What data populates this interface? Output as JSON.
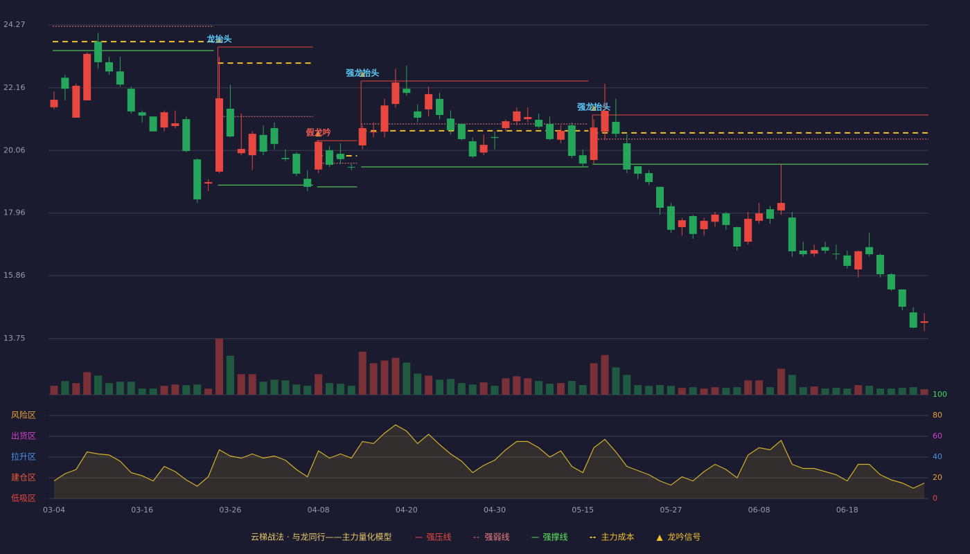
{
  "chart_data": {
    "type": "candlestick",
    "categories": [
      "03-04",
      null,
      null,
      null,
      null,
      null,
      null,
      null,
      "03-16",
      null,
      null,
      null,
      null,
      null,
      null,
      null,
      "03-26",
      null,
      null,
      null,
      null,
      null,
      null,
      null,
      "04-08",
      null,
      null,
      null,
      null,
      null,
      null,
      null,
      "04-20",
      null,
      null,
      null,
      null,
      null,
      null,
      null,
      "04-30",
      null,
      null,
      null,
      null,
      null,
      null,
      null,
      "05-15",
      null,
      null,
      null,
      null,
      null,
      null,
      null,
      "05-27",
      null,
      null,
      null,
      null,
      null,
      null,
      null,
      "06-08",
      null,
      null,
      null,
      null,
      null,
      null,
      null,
      "06-18",
      null,
      null,
      null,
      null,
      null,
      null,
      null
    ],
    "open": [
      21.51,
      22.5,
      21.16,
      21.74,
      23.71,
      23.02,
      22.71,
      22.13,
      21.34,
      21.2,
      20.83,
      20.88,
      21.11,
      19.76,
      18.95,
      19.35,
      21.46,
      19.97,
      19.9,
      20.58,
      20.81,
      19.81,
      19.95,
      19.11,
      19.42,
      20.07,
      19.95,
      19.51,
      20.23,
      20.67,
      20.69,
      21.62,
      22.13,
      21.37,
      21.44,
      21.79,
      21.13,
      20.95,
      20.37,
      19.99,
      20.51,
      20.81,
      21.04,
      21.11,
      21.09,
      20.95,
      20.42,
      20.9,
      19.9,
      19.74,
      20.69,
      21.02,
      20.3,
      19.53,
      19.3,
      18.84,
      18.19,
      17.49,
      17.86,
      17.42,
      17.67,
      17.95,
      17.49,
      17,
      17.7,
      18.09,
      18.05,
      17.81,
      16.7,
      16.6,
      16.82,
      16.6,
      16.54,
      16.07,
      16.82,
      16.56,
      15.91,
      15.4,
      14.63,
      14.28
    ],
    "high": [
      22.04,
      22.6,
      22.3,
      23.35,
      24,
      23.2,
      23.2,
      22.2,
      21.4,
      21.2,
      21.4,
      21.4,
      21.2,
      19.8,
      19.1,
      23.2,
      22.27,
      21.3,
      20.7,
      20.9,
      21,
      20.1,
      20,
      19.4,
      20.4,
      20.2,
      20.3,
      19.6,
      20.9,
      21,
      21.8,
      22.8,
      22.9,
      21.6,
      22.2,
      22,
      21.4,
      20.95,
      20.5,
      20.6,
      20.7,
      21.1,
      21.5,
      21.5,
      21.3,
      21.2,
      20.9,
      21,
      20.1,
      21.1,
      22.3,
      21.8,
      20.6,
      19.53,
      19.4,
      18.84,
      18.3,
      17.8,
      17.9,
      17.8,
      18,
      18,
      17.5,
      18,
      18.3,
      18.2,
      19.6,
      18,
      17,
      16.9,
      17,
      16.9,
      16.7,
      16.7,
      17.3,
      16.6,
      15.95,
      15.4,
      14.8,
      14.6
    ],
    "low": [
      21.44,
      21.74,
      21.16,
      21.74,
      22.8,
      22.6,
      22.2,
      21.3,
      21,
      20.7,
      20.7,
      20.8,
      20,
      18.3,
      18.7,
      19.3,
      20.5,
      19.9,
      19.4,
      19.9,
      20.1,
      19.7,
      19.2,
      18.7,
      19.3,
      19.5,
      19.6,
      19.4,
      20.1,
      20.5,
      20.5,
      21.5,
      21.9,
      21,
      21.2,
      21.1,
      20.6,
      20.4,
      19.8,
      19.9,
      20.1,
      20.7,
      20.9,
      21,
      20.8,
      20.4,
      20.3,
      19.8,
      19.5,
      19.6,
      20.4,
      20.5,
      19.3,
      19.1,
      18.9,
      17.9,
      17.3,
      17.2,
      17.1,
      17.2,
      17.5,
      17.4,
      16.7,
      16.9,
      17.6,
      17.6,
      17.9,
      16.5,
      16.5,
      16.5,
      16.6,
      16.4,
      16.1,
      15.8,
      16.5,
      15.8,
      15.35,
      14.7,
      14.1,
      14
    ],
    "close": [
      21.76,
      22.13,
      22.23,
      23.3,
      23.02,
      22.71,
      22.27,
      21.37,
      21.23,
      20.7,
      21.34,
      20.97,
      20.04,
      18.42,
      19,
      21.81,
      20.53,
      20.11,
      20.62,
      20.02,
      20.28,
      19.77,
      19.28,
      18.84,
      20.35,
      19.58,
      19.77,
      19.49,
      20.81,
      20.69,
      21.57,
      22.34,
      21.99,
      21.16,
      21.95,
      21.25,
      20.74,
      20.44,
      19.86,
      20.25,
      20.48,
      21.04,
      21.37,
      21.18,
      20.86,
      20.44,
      20.72,
      19.88,
      19.62,
      20.83,
      21.39,
      20.62,
      19.42,
      19.28,
      19,
      18.14,
      17.4,
      17.72,
      17.26,
      17.7,
      17.91,
      17.56,
      16.84,
      17.77,
      17.95,
      17.77,
      18.3,
      16.68,
      16.58,
      16.72,
      16.7,
      16.58,
      16.19,
      16.68,
      16.58,
      15.91,
      15.4,
      14.82,
      14.12,
      14.33
    ],
    "volume": [
      13,
      20,
      17,
      33,
      28,
      17,
      19,
      19,
      9,
      9,
      13,
      15,
      14,
      15,
      9,
      82,
      57,
      30,
      30,
      19,
      22,
      21,
      15,
      13,
      30,
      17,
      16,
      13,
      63,
      46,
      50,
      54,
      47,
      31,
      28,
      22,
      23,
      17,
      15,
      18,
      13,
      24,
      27,
      24,
      20,
      16,
      17,
      20,
      14,
      46,
      58,
      40,
      29,
      14,
      13,
      14,
      13,
      10,
      11,
      9,
      11,
      10,
      11,
      21,
      21,
      11,
      38,
      29,
      11,
      12,
      9,
      10,
      9,
      14,
      13,
      9,
      9,
      10,
      11,
      8
    ],
    "ylim": [
      13.75,
      24.27
    ],
    "yticks": [
      13.75,
      15.86,
      17.96,
      20.06,
      22.16,
      24.27
    ],
    "colors": {
      "up": "#e8473f",
      "down": "#26a65b",
      "up_volume": "#7a3037",
      "down_volume": "#1f5a40"
    },
    "levels": [
      {
        "from": 0,
        "to": 14,
        "weak": 24.22,
        "cost": 23.71,
        "support": 23.41
      },
      {
        "from": 15,
        "to": 23,
        "signal": "龙抬头",
        "signal_color": "#5bc8f5",
        "pressure": 23.53,
        "cost": 22.99,
        "weak": 21.2,
        "support": 18.9
      },
      {
        "from": 24,
        "to": 27,
        "signal": "假龙吟",
        "signal_color": "#f05a50",
        "pressure": 20.39,
        "cost": 19.88,
        "weak": 19.63,
        "support": 18.84
      },
      {
        "from": 28,
        "to": 48,
        "signal": "强龙抬头",
        "signal_color": "#5bc8f5",
        "pressure": 22.39,
        "weak": 20.95,
        "cost": 20.72,
        "support": 19.51
      },
      {
        "from": 49,
        "to": 79,
        "signal": "强龙抬头",
        "signal_color": "#5bc8f5",
        "pressure": 21.25,
        "weak": 20.44,
        "cost": 20.65,
        "support": 19.6
      }
    ],
    "indicator": {
      "values": [
        17,
        24,
        28,
        45,
        43,
        42,
        36,
        25,
        22,
        17,
        31,
        26,
        18,
        12,
        21,
        47,
        41,
        39,
        43,
        39,
        41,
        37,
        28,
        21,
        46,
        39,
        43,
        39,
        55,
        53,
        63,
        71,
        65,
        53,
        62,
        52,
        43,
        36,
        25,
        32,
        37,
        47,
        55,
        55,
        49,
        40,
        46,
        31,
        25,
        49,
        57,
        45,
        31,
        27,
        23,
        17,
        13,
        21,
        17,
        26,
        33,
        28,
        20,
        42,
        49,
        47,
        56,
        33,
        29,
        29,
        26,
        23,
        17,
        33,
        33,
        23,
        18,
        15,
        10,
        15
      ],
      "color": "#d4b22a",
      "ylim": [
        0,
        100
      ],
      "yticks": [
        0,
        20,
        40,
        60,
        80,
        100
      ],
      "ytick_colors": [
        "#e8473f",
        "#e8a23a",
        "#4a90e8",
        "#d040d0",
        "#e8a23a",
        "#3ddc5a"
      ],
      "zones": [
        {
          "label": "风险区",
          "value": 80,
          "color": "#e8a23a"
        },
        {
          "label": "出货区",
          "value": 60,
          "color": "#d040d0"
        },
        {
          "label": "拉升区",
          "value": 40,
          "color": "#4a90e8"
        },
        {
          "label": "建仓区",
          "value": 20,
          "color": "#e85a3a"
        },
        {
          "label": "低吸区",
          "value": 0,
          "color": "#e8473f"
        }
      ]
    },
    "legend": {
      "title": "云梯战法 · 与龙同行——主力量化模型",
      "title_color": "#e8c86a",
      "items": [
        {
          "name": "强压线",
          "key": "pressure",
          "color": "#e8473f"
        },
        {
          "name": "强弱线",
          "key": "weak",
          "color": "#f08080"
        },
        {
          "name": "强撑线",
          "key": "support",
          "color": "#5de85d"
        },
        {
          "name": "主力成本",
          "key": "cost",
          "color": "#f0c030"
        },
        {
          "name": "龙吟信号",
          "key": "signal",
          "color": "#f0c030"
        }
      ]
    }
  }
}
